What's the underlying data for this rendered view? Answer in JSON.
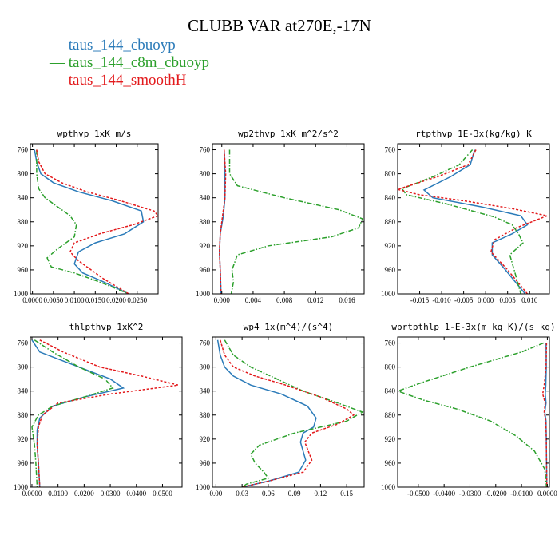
{
  "figure": {
    "title": "CLUBB VAR at270E,-17N",
    "legend": [
      {
        "label": "taus_144_cbuoyp",
        "color": "#2b7bb9"
      },
      {
        "label": "taus_144_c8m_cbuoyp",
        "color": "#2ca02c"
      },
      {
        "label": "taus_144_smoothH",
        "color": "#e31a1c"
      }
    ]
  },
  "chart_data": [
    {
      "type": "line",
      "title": "wpthvp  1xK m/s",
      "xlim": [
        -0.0005,
        0.03
      ],
      "ylim": [
        1000,
        750
      ],
      "xticks": [
        0,
        0.005,
        0.01,
        0.015,
        0.02,
        0.025
      ],
      "xtick_labels": [
        "0.0000",
        "0.0050",
        "0.0100",
        "0.0150",
        "0.0200",
        "0.0250"
      ],
      "yticks": [
        760,
        800,
        840,
        880,
        920,
        960,
        1000
      ],
      "series": [
        {
          "name": "taus_144_cbuoyp",
          "x": [
            0.0005,
            0.001,
            0.002,
            0.005,
            0.011,
            0.019,
            0.026,
            0.0265,
            0.022,
            0.015,
            0.011,
            0.01,
            0.012,
            0.017,
            0.023
          ],
          "y": [
            760,
            780,
            800,
            815,
            830,
            845,
            862,
            880,
            900,
            915,
            930,
            950,
            965,
            980,
            1000
          ]
        },
        {
          "name": "taus_144_c8m_cbuoyp",
          "x": [
            0.001,
            0.001,
            0.0015,
            0.003,
            0.006,
            0.009,
            0.0105,
            0.01,
            0.006,
            0.0035,
            0.0045,
            0.01,
            0.016,
            0.023
          ],
          "y": [
            760,
            800,
            825,
            840,
            855,
            870,
            885,
            905,
            925,
            940,
            955,
            965,
            980,
            1000
          ]
        },
        {
          "name": "taus_144_smoothH",
          "x": [
            0.001,
            0.0015,
            0.003,
            0.007,
            0.013,
            0.021,
            0.029,
            0.03,
            0.024,
            0.016,
            0.01,
            0.009,
            0.011,
            0.017,
            0.023
          ],
          "y": [
            760,
            780,
            800,
            815,
            830,
            845,
            862,
            870,
            885,
            900,
            915,
            930,
            945,
            975,
            1000
          ]
        }
      ]
    },
    {
      "type": "line",
      "title": "wp2thvp  1xK m^2/s^2",
      "xlim": [
        -0.0012,
        0.0182
      ],
      "ylim": [
        1000,
        750
      ],
      "xticks": [
        0,
        0.004,
        0.008,
        0.012,
        0.016
      ],
      "xtick_labels": [
        "0.000",
        "0.004",
        "0.008",
        "0.012",
        "0.016"
      ],
      "yticks": [
        760,
        800,
        840,
        880,
        920,
        960,
        1000
      ],
      "series": [
        {
          "name": "taus_144_cbuoyp",
          "x": [
            0.0003,
            0.0004,
            0.0004,
            0.0002,
            -0.0002,
            -0.0003,
            -0.0002,
            -0.0001
          ],
          "y": [
            760,
            800,
            840,
            870,
            900,
            930,
            960,
            1000
          ]
        },
        {
          "name": "taus_144_c8m_cbuoyp",
          "x": [
            0.001,
            0.001,
            0.002,
            0.008,
            0.015,
            0.018,
            0.0175,
            0.014,
            0.006,
            0.002,
            0.0013,
            0.0015,
            0.0012
          ],
          "y": [
            760,
            800,
            820,
            840,
            860,
            875,
            890,
            905,
            920,
            935,
            960,
            980,
            1000
          ]
        },
        {
          "name": "taus_144_smoothH",
          "x": [
            0.0003,
            0.0005,
            0.0004,
            0.0001,
            -0.0002,
            -0.0003,
            -0.0002,
            -0.0001
          ],
          "y": [
            760,
            800,
            840,
            870,
            900,
            930,
            960,
            1000
          ]
        }
      ]
    },
    {
      "type": "line",
      "title": "rtpthvp  1E-3x(kg/kg) K",
      "xlim": [
        -0.02,
        0.0145
      ],
      "ylim": [
        1000,
        750
      ],
      "xticks": [
        -0.015,
        -0.01,
        -0.005,
        0.0,
        0.005,
        0.01
      ],
      "xtick_labels": [
        "-0.015",
        "-0.010",
        "-0.005",
        "0.000",
        "0.005",
        "0.010"
      ],
      "yticks": [
        760,
        800,
        840,
        880,
        920,
        960,
        1000
      ],
      "series": [
        {
          "name": "taus_144_cbuoyp",
          "x": [
            -0.0025,
            -0.0035,
            -0.008,
            -0.014,
            -0.012,
            -0.001,
            0.008,
            0.0095,
            0.006,
            0.0015,
            0.0015,
            0.0045,
            0.009
          ],
          "y": [
            760,
            785,
            805,
            827,
            840,
            855,
            870,
            885,
            900,
            915,
            935,
            960,
            1000
          ]
        },
        {
          "name": "taus_144_c8m_cbuoyp",
          "x": [
            -0.003,
            -0.006,
            -0.012,
            -0.019,
            -0.018,
            -0.015,
            -0.009,
            -0.004,
            0.002,
            0.006,
            0.0075,
            0.0085,
            0.0055,
            0.0065,
            0.008
          ],
          "y": [
            760,
            785,
            805,
            825,
            835,
            840,
            850,
            860,
            872,
            885,
            900,
            915,
            935,
            960,
            1000
          ]
        },
        {
          "name": "taus_144_smoothH",
          "x": [
            -0.0022,
            -0.004,
            -0.011,
            -0.02,
            -0.015,
            -0.005,
            0.006,
            0.014,
            0.007,
            0.002,
            0.0012,
            0.005,
            0.0095
          ],
          "y": [
            760,
            785,
            805,
            826,
            835,
            845,
            858,
            870,
            890,
            910,
            930,
            960,
            1000
          ]
        }
      ]
    },
    {
      "type": "line",
      "title": "thlpthvp  1xK^2",
      "xlim": [
        -0.0006,
        0.0575
      ],
      "ylim": [
        1000,
        750
      ],
      "xticks": [
        0,
        0.01,
        0.02,
        0.03,
        0.04,
        0.05
      ],
      "xtick_labels": [
        "0.0000",
        "0.0100",
        "0.0200",
        "0.0300",
        "0.0400",
        "0.0500"
      ],
      "yticks": [
        760,
        800,
        840,
        880,
        920,
        960,
        1000
      ],
      "series": [
        {
          "name": "taus_144_cbuoyp",
          "x": [
            0.0,
            0.003,
            0.018,
            0.03,
            0.035,
            0.02,
            0.008,
            0.003,
            0.002,
            0.002,
            0.0025,
            0.003
          ],
          "y": [
            755,
            775,
            800,
            820,
            835,
            850,
            865,
            885,
            905,
            930,
            960,
            1000
          ]
        },
        {
          "name": "taus_144_c8m_cbuoyp",
          "x": [
            0.001,
            0.008,
            0.018,
            0.028,
            0.031,
            0.02,
            0.008,
            0.0025,
            0.0,
            0.001,
            0.0015,
            0.002
          ],
          "y": [
            755,
            775,
            800,
            820,
            835,
            850,
            865,
            880,
            900,
            930,
            960,
            1000
          ]
        },
        {
          "name": "taus_144_smoothH",
          "x": [
            0.003,
            0.012,
            0.026,
            0.042,
            0.056,
            0.03,
            0.01,
            0.004,
            0.0025,
            0.002,
            0.0025,
            0.003
          ],
          "y": [
            755,
            775,
            800,
            815,
            830,
            845,
            860,
            880,
            900,
            930,
            960,
            1000
          ]
        }
      ]
    },
    {
      "type": "line",
      "title": "wp4  1x(m^4)/(s^4)",
      "xlim": [
        -0.004,
        0.17
      ],
      "ylim": [
        1000,
        750
      ],
      "xticks": [
        0.0,
        0.03,
        0.06,
        0.09,
        0.12,
        0.15
      ],
      "xtick_labels": [
        "0.00",
        "0.03",
        "0.06",
        "0.09",
        "0.12",
        "0.15"
      ],
      "yticks": [
        760,
        800,
        840,
        880,
        920,
        960,
        1000
      ],
      "series": [
        {
          "name": "taus_144_cbuoyp",
          "x": [
            0.002,
            0.005,
            0.01,
            0.02,
            0.04,
            0.075,
            0.105,
            0.115,
            0.112,
            0.1,
            0.097,
            0.103,
            0.095,
            0.06,
            0.03
          ],
          "y": [
            755,
            780,
            800,
            815,
            830,
            845,
            865,
            885,
            900,
            910,
            925,
            955,
            975,
            990,
            1000
          ]
        },
        {
          "name": "taus_144_c8m_cbuoyp",
          "x": [
            0.01,
            0.02,
            0.04,
            0.07,
            0.1,
            0.14,
            0.168,
            0.15,
            0.09,
            0.05,
            0.04,
            0.045,
            0.055,
            0.06,
            0.035,
            0.03
          ],
          "y": [
            755,
            780,
            800,
            820,
            840,
            860,
            875,
            890,
            910,
            930,
            945,
            960,
            975,
            985,
            995,
            1000
          ]
        },
        {
          "name": "taus_144_smoothH",
          "x": [
            0.005,
            0.01,
            0.02,
            0.045,
            0.08,
            0.12,
            0.15,
            0.158,
            0.14,
            0.11,
            0.102,
            0.11,
            0.1,
            0.06,
            0.03
          ],
          "y": [
            755,
            780,
            800,
            815,
            830,
            850,
            870,
            880,
            895,
            910,
            925,
            955,
            975,
            990,
            1000
          ]
        }
      ]
    },
    {
      "type": "line",
      "title": "wprtpthlp  1-E-3x(m kg K)/(s kg)",
      "xlim": [
        -0.058,
        0.0008
      ],
      "ylim": [
        1000,
        750
      ],
      "xticks": [
        -0.05,
        -0.04,
        -0.03,
        -0.02,
        -0.01,
        0.0
      ],
      "xtick_labels": [
        "-0.0500",
        "-0.0400",
        "-0.0300",
        "-0.0200",
        "-0.0100",
        "0.0000"
      ],
      "yticks": [
        760,
        800,
        840,
        880,
        920,
        960,
        1000
      ],
      "series": [
        {
          "name": "taus_144_cbuoyp",
          "x": [
            -0.0005,
            -0.0004,
            -0.0006,
            -0.0008,
            -0.0005,
            -0.001,
            -0.0005,
            -0.0004,
            -0.0003,
            -0.0002
          ],
          "y": [
            760,
            800,
            830,
            845,
            860,
            875,
            890,
            920,
            960,
            1000
          ]
        },
        {
          "name": "taus_144_c8m_cbuoyp",
          "x": [
            -0.0015,
            -0.01,
            -0.03,
            -0.048,
            -0.058,
            -0.048,
            -0.035,
            -0.022,
            -0.012,
            -0.005,
            -0.001,
            -0.0003
          ],
          "y": [
            760,
            775,
            800,
            825,
            840,
            855,
            870,
            890,
            915,
            940,
            970,
            1000
          ]
        },
        {
          "name": "taus_144_smoothH",
          "x": [
            -0.0003,
            -0.0005,
            -0.0012,
            -0.0018,
            -0.0008,
            -0.0012,
            -0.0006,
            -0.0004,
            -0.0003,
            -0.0002
          ],
          "y": [
            760,
            800,
            830,
            845,
            860,
            875,
            890,
            920,
            960,
            1000
          ]
        }
      ]
    }
  ]
}
